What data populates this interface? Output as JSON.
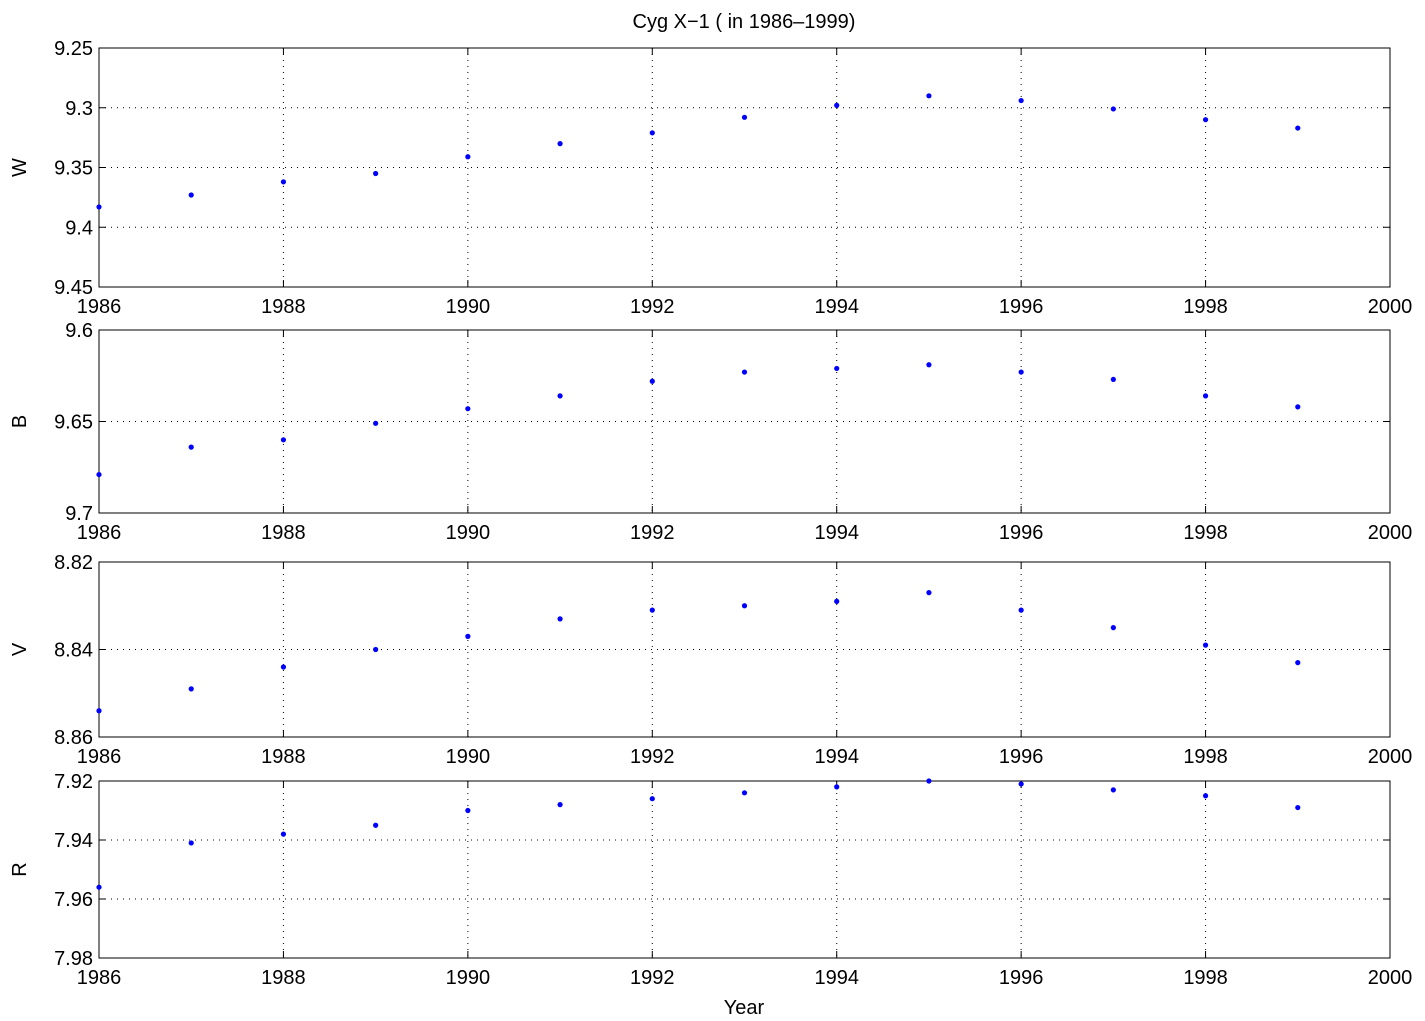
{
  "title": "Cyg X−1 ( in 1986–1999)",
  "xlabel": "Year",
  "colors": {
    "marker": "#0000ff",
    "axis": "#000000",
    "grid": "#000000"
  },
  "chart_data": [
    {
      "type": "scatter",
      "ylabel": "W",
      "y_reversed": true,
      "xlim": [
        1986,
        2000
      ],
      "ylim": [
        9.25,
        9.45
      ],
      "grid": true,
      "x_ticks": [
        "1986",
        "1988",
        "1990",
        "1992",
        "1994",
        "1996",
        "1998",
        "2000"
      ],
      "y_ticks": [
        "9.25",
        "9.3",
        "9.35",
        "9.4",
        "9.45"
      ],
      "x": [
        1986,
        1987,
        1988,
        1989,
        1990,
        1991,
        1992,
        1993,
        1994,
        1995,
        1996,
        1997,
        1998,
        1999
      ],
      "y": [
        9.383,
        9.373,
        9.362,
        9.355,
        9.341,
        9.33,
        9.321,
        9.308,
        9.298,
        9.29,
        9.294,
        9.301,
        9.31,
        9.317
      ]
    },
    {
      "type": "scatter",
      "ylabel": "B",
      "y_reversed": true,
      "xlim": [
        1986,
        2000
      ],
      "ylim": [
        9.6,
        9.7
      ],
      "grid": true,
      "x_ticks": [
        "1986",
        "1988",
        "1990",
        "1992",
        "1994",
        "1996",
        "1998",
        "2000"
      ],
      "y_ticks": [
        "9.6",
        "9.65",
        "9.7"
      ],
      "x": [
        1986,
        1987,
        1988,
        1989,
        1990,
        1991,
        1992,
        1993,
        1994,
        1995,
        1996,
        1997,
        1998,
        1999
      ],
      "y": [
        9.679,
        9.664,
        9.66,
        9.651,
        9.643,
        9.636,
        9.628,
        9.623,
        9.621,
        9.619,
        9.623,
        9.627,
        9.636,
        9.642
      ]
    },
    {
      "type": "scatter",
      "ylabel": "V",
      "y_reversed": true,
      "xlim": [
        1986,
        2000
      ],
      "ylim": [
        8.82,
        8.86
      ],
      "grid": true,
      "x_ticks": [
        "1986",
        "1988",
        "1990",
        "1992",
        "1994",
        "1996",
        "1998",
        "2000"
      ],
      "y_ticks": [
        "8.82",
        "8.84",
        "8.86"
      ],
      "x": [
        1986,
        1987,
        1988,
        1989,
        1990,
        1991,
        1992,
        1993,
        1994,
        1995,
        1996,
        1997,
        1998,
        1999
      ],
      "y": [
        8.854,
        8.849,
        8.844,
        8.84,
        8.837,
        8.833,
        8.831,
        8.83,
        8.829,
        8.827,
        8.831,
        8.835,
        8.839,
        8.843
      ]
    },
    {
      "type": "scatter",
      "ylabel": "R",
      "y_reversed": true,
      "xlim": [
        1986,
        2000
      ],
      "ylim": [
        7.92,
        7.98
      ],
      "grid": true,
      "x_ticks": [
        "1986",
        "1988",
        "1990",
        "1992",
        "1994",
        "1996",
        "1998",
        "2000"
      ],
      "y_ticks": [
        "7.92",
        "7.94",
        "7.96",
        "7.98"
      ],
      "x": [
        1986,
        1987,
        1988,
        1989,
        1990,
        1991,
        1992,
        1993,
        1994,
        1995,
        1996,
        1997,
        1998,
        1999
      ],
      "y": [
        7.956,
        7.941,
        7.938,
        7.935,
        7.93,
        7.928,
        7.926,
        7.924,
        7.922,
        7.92,
        7.921,
        7.923,
        7.925,
        7.929
      ]
    }
  ]
}
